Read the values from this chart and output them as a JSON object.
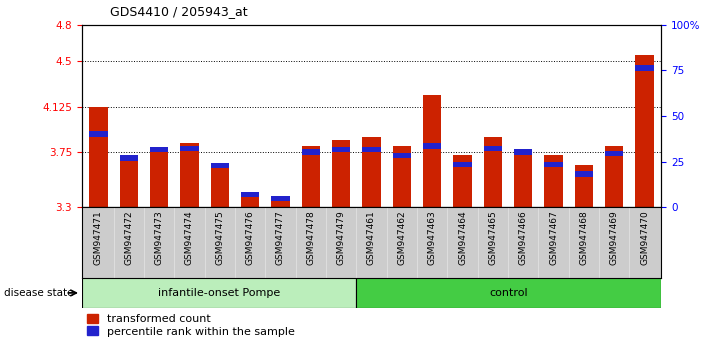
{
  "title": "GDS4410 / 205943_at",
  "samples": [
    "GSM947471",
    "GSM947472",
    "GSM947473",
    "GSM947474",
    "GSM947475",
    "GSM947476",
    "GSM947477",
    "GSM947478",
    "GSM947479",
    "GSM947461",
    "GSM947462",
    "GSM947463",
    "GSM947464",
    "GSM947465",
    "GSM947466",
    "GSM947467",
    "GSM947468",
    "GSM947469",
    "GSM947470"
  ],
  "red_values": [
    4.125,
    3.72,
    3.78,
    3.83,
    3.65,
    3.42,
    3.38,
    3.8,
    3.85,
    3.88,
    3.8,
    4.22,
    3.73,
    3.88,
    3.75,
    3.73,
    3.65,
    3.8,
    4.55
  ],
  "blue_positions": [
    3.88,
    3.68,
    3.75,
    3.76,
    3.62,
    3.38,
    3.35,
    3.73,
    3.75,
    3.75,
    3.7,
    3.78,
    3.63,
    3.76,
    3.73,
    3.63,
    3.55,
    3.72,
    4.42
  ],
  "blue_heights": [
    0.045,
    0.045,
    0.045,
    0.045,
    0.045,
    0.045,
    0.045,
    0.045,
    0.045,
    0.045,
    0.045,
    0.045,
    0.045,
    0.045,
    0.045,
    0.045,
    0.045,
    0.045,
    0.045
  ],
  "group1_count": 9,
  "group2_count": 10,
  "group1_label": "infantile-onset Pompe",
  "group2_label": "control",
  "disease_state_label": "disease state",
  "ymin": 3.3,
  "ymax": 4.8,
  "yticks": [
    3.3,
    3.75,
    4.125,
    4.5,
    4.8
  ],
  "ytick_labels": [
    "3.3",
    "3.75",
    "4.125",
    "4.5",
    "4.8"
  ],
  "right_yticks": [
    0,
    25,
    50,
    75,
    100
  ],
  "right_ytick_labels": [
    "0",
    "25",
    "50",
    "75",
    "100%"
  ],
  "grid_lines": [
    3.75,
    4.125,
    4.5
  ],
  "bar_color": "#cc2200",
  "blue_color": "#2222cc",
  "group1_bg": "#bbeebb",
  "group2_bg": "#44cc44",
  "xtick_bg": "#cccccc",
  "legend_items": [
    "transformed count",
    "percentile rank within the sample"
  ]
}
